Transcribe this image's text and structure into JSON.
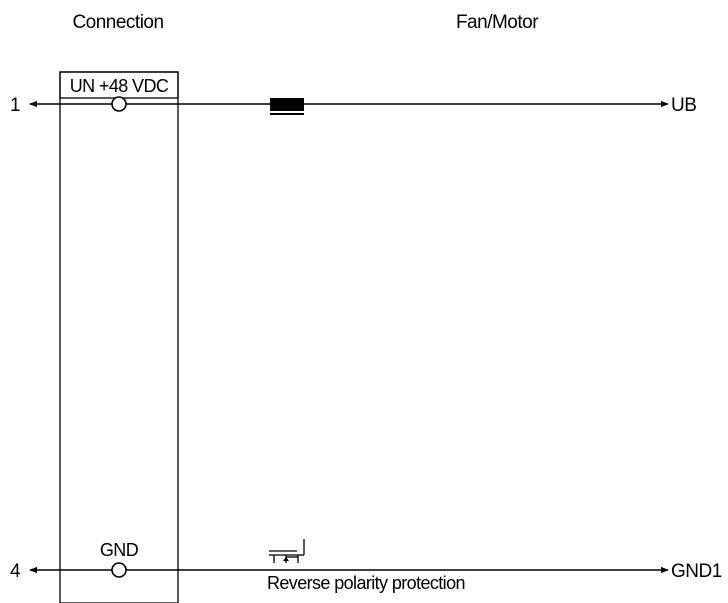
{
  "headers": {
    "connection": "Connection",
    "fan_motor": "Fan/Motor"
  },
  "connector": {
    "supply_label": "UN +48 VDC",
    "ground_label": "GND"
  },
  "pins": {
    "top": "1",
    "bottom": "4"
  },
  "outputs": {
    "top": "UB",
    "bottom": "GND1"
  },
  "components": {
    "reverse_polarity_label": "Reverse polarity protection"
  }
}
